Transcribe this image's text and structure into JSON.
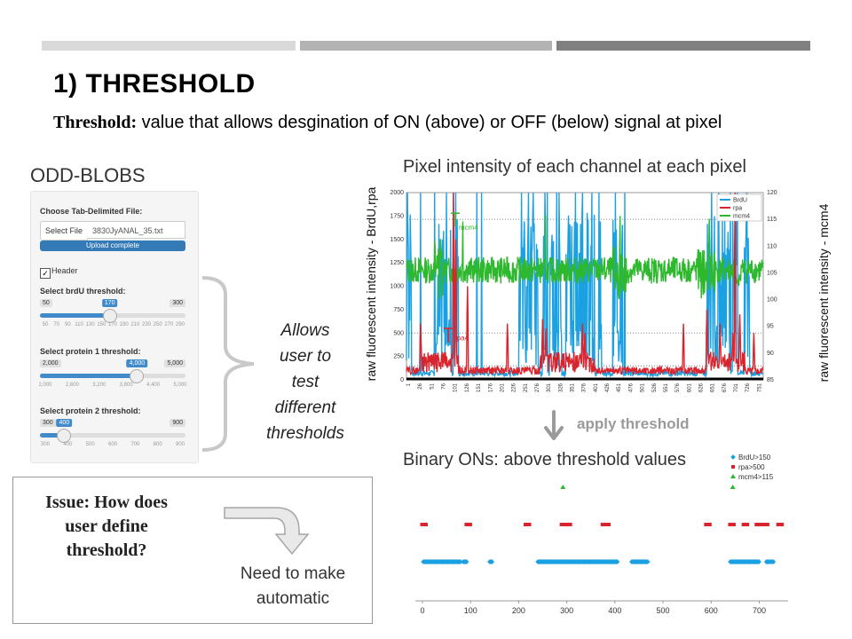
{
  "slide": {
    "title": "1) THRESHOLD",
    "subtitle_bold": "Threshold:",
    "subtitle_rest": " value that allows desgination of ON (above) or OFF (below) signal at pixel",
    "bar_colors": [
      "#d9d9d9",
      "#b3b3b3",
      "#808080"
    ]
  },
  "app": {
    "title": "ODD-BLOBS",
    "file_label": "Choose Tab-Delimited File:",
    "file_button": "Select File",
    "file_name": "3830JyANAL_35.txt",
    "upload_status": "Upload complete",
    "header_label": "Header",
    "header_checked": "✓",
    "sliders": [
      {
        "label": "Select brdU threshold:",
        "min": "50",
        "max": "300",
        "value": "170",
        "fraction": 0.48,
        "ticks": [
          "50",
          "70",
          "90",
          "110",
          "130",
          "150",
          "170",
          "190",
          "210",
          "230",
          "250",
          "270",
          "290"
        ]
      },
      {
        "label": "Select protein 1 threshold:",
        "min": "2,000",
        "max": "5,000",
        "value": "4,000",
        "fraction": 0.667,
        "ticks": [
          "2,000",
          "2,600",
          "3,200",
          "3,800",
          "4,400",
          "5,000"
        ]
      },
      {
        "label": "Select protein 2 threshold:",
        "min": "300",
        "max": "900",
        "value": "400",
        "fraction": 0.167,
        "ticks": [
          "300",
          "400",
          "500",
          "600",
          "700",
          "800",
          "900"
        ]
      }
    ]
  },
  "annotation": {
    "allows": [
      "Allows",
      "user to",
      "test",
      "different",
      "thresholds"
    ]
  },
  "issue": {
    "text": [
      "Issue: How does",
      "user define",
      "threshold?"
    ],
    "need": [
      "Need to make",
      "automatic"
    ]
  },
  "chart_top": {
    "title": "Pixel intensity of each channel at each pixel",
    "ylabel_left": "raw fluorescent intensity - BrdU,rpa",
    "ylabel_right": "raw fluorescent intensity - mcm4",
    "apply_label": "apply threshold"
  },
  "chart_bottom": {
    "title": "Binary ONs: above threshold values"
  },
  "chart_data": [
    {
      "type": "line",
      "x_ticks": [
        "1",
        "26",
        "51",
        "76",
        "101",
        "126",
        "151",
        "176",
        "201",
        "226",
        "251",
        "276",
        "301",
        "326",
        "351",
        "376",
        "401",
        "426",
        "451",
        "476",
        "501",
        "526",
        "551",
        "576",
        "601",
        "626",
        "651",
        "676",
        "701",
        "726",
        "751"
      ],
      "y_left_ticks": [
        "0",
        "250",
        "500",
        "750",
        "1000",
        "1250",
        "1500",
        "1750",
        "2000"
      ],
      "y_right_ticks": [
        "85",
        "90",
        "95",
        "100",
        "105",
        "110",
        "115",
        "120"
      ],
      "ylim_left": [
        0,
        2000
      ],
      "ylim_right": [
        85,
        120
      ],
      "legend": [
        "BrdU",
        "rpa",
        "mcm4"
      ],
      "legend_position": "top-right",
      "colors": {
        "BrdU": "#1ba1e2",
        "rpa": "#d9232d",
        "mcm4": "#2eb82e"
      },
      "annotations": [
        "mcm4",
        "rpa4"
      ],
      "thresholds_left": [
        150,
        500
      ],
      "threshold_right": 115
    },
    {
      "type": "scatter",
      "x_ticks": [
        "0",
        "100",
        "200",
        "300",
        "400",
        "500",
        "600",
        "700"
      ],
      "xlim": [
        0,
        760
      ],
      "legend": [
        "BrdU>150",
        "rpa>500",
        "mcm4>115"
      ],
      "legend_position": "top-right",
      "colors": {
        "BrdU>150": "#1ba1e2",
        "rpa>500": "#d9232d",
        "mcm4>115": "#2eb82e"
      },
      "brdu_ranges": [
        [
          2,
          80
        ],
        [
          85,
          92
        ],
        [
          140,
          145
        ],
        [
          240,
          405
        ],
        [
          435,
          470
        ],
        [
          640,
          700
        ],
        [
          715,
          722
        ],
        [
          725,
          730
        ]
      ],
      "rpa_points": [
        0,
        92,
        215,
        290,
        300,
        375,
        380,
        590,
        640,
        668,
        695,
        710,
        740
      ],
      "mcm4_points": [
        292,
        645
      ]
    }
  ]
}
